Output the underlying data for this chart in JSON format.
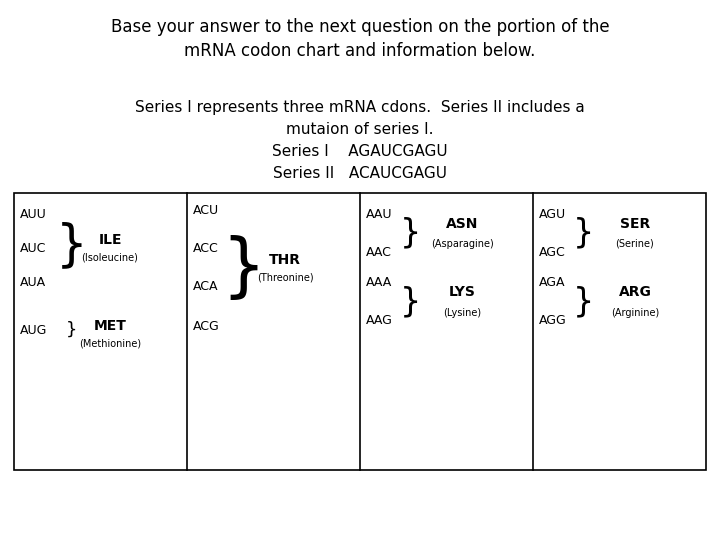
{
  "title_line1": "Base your answer to the next question on the portion of the",
  "title_line2": "mRNA codon chart and information below.",
  "info_line1": "Series I represents three mRNA cdons.  Series II includes a",
  "info_line2": "mutaion of series I.",
  "info_line3": "Series I    AGAUCGAGU",
  "info_line4": "Series II   ACAUCGAGU",
  "bg_color": "#ffffff",
  "text_color": "#000000",
  "table_border": "#000000",
  "cell1_codons": [
    "AUU",
    "AUC",
    "AUA",
    "AUG"
  ],
  "cell1_amino1": "ILE",
  "cell1_amino1_sub": "(Isoleucine)",
  "cell1_amino2": "MET",
  "cell1_amino2_sub": "(Methionine)",
  "cell2_codons": [
    "ACU",
    "ACC",
    "ACA",
    "ACG"
  ],
  "cell2_amino": "THR",
  "cell2_amino_sub": "(Threonine)",
  "cell3_codons_top": [
    "AAU",
    "AAC"
  ],
  "cell3_amino1": "ASN",
  "cell3_amino1_sub": "(Asparagine)",
  "cell3_codons_bot": [
    "AAA",
    "AAG"
  ],
  "cell3_amino2": "LYS",
  "cell3_amino2_sub": "(Lysine)",
  "cell4_codons_top": [
    "AGU",
    "AGC"
  ],
  "cell4_amino1": "SER",
  "cell4_amino1_sub": "(Serine)",
  "cell4_codons_bot": [
    "AGA",
    "AGG"
  ],
  "cell4_amino2": "ARG",
  "cell4_amino2_sub": "(Arginine)",
  "title_fontsize": 12,
  "info_fontsize": 11,
  "codon_fontsize": 9,
  "amino_fontsize": 10,
  "sub_fontsize": 7
}
